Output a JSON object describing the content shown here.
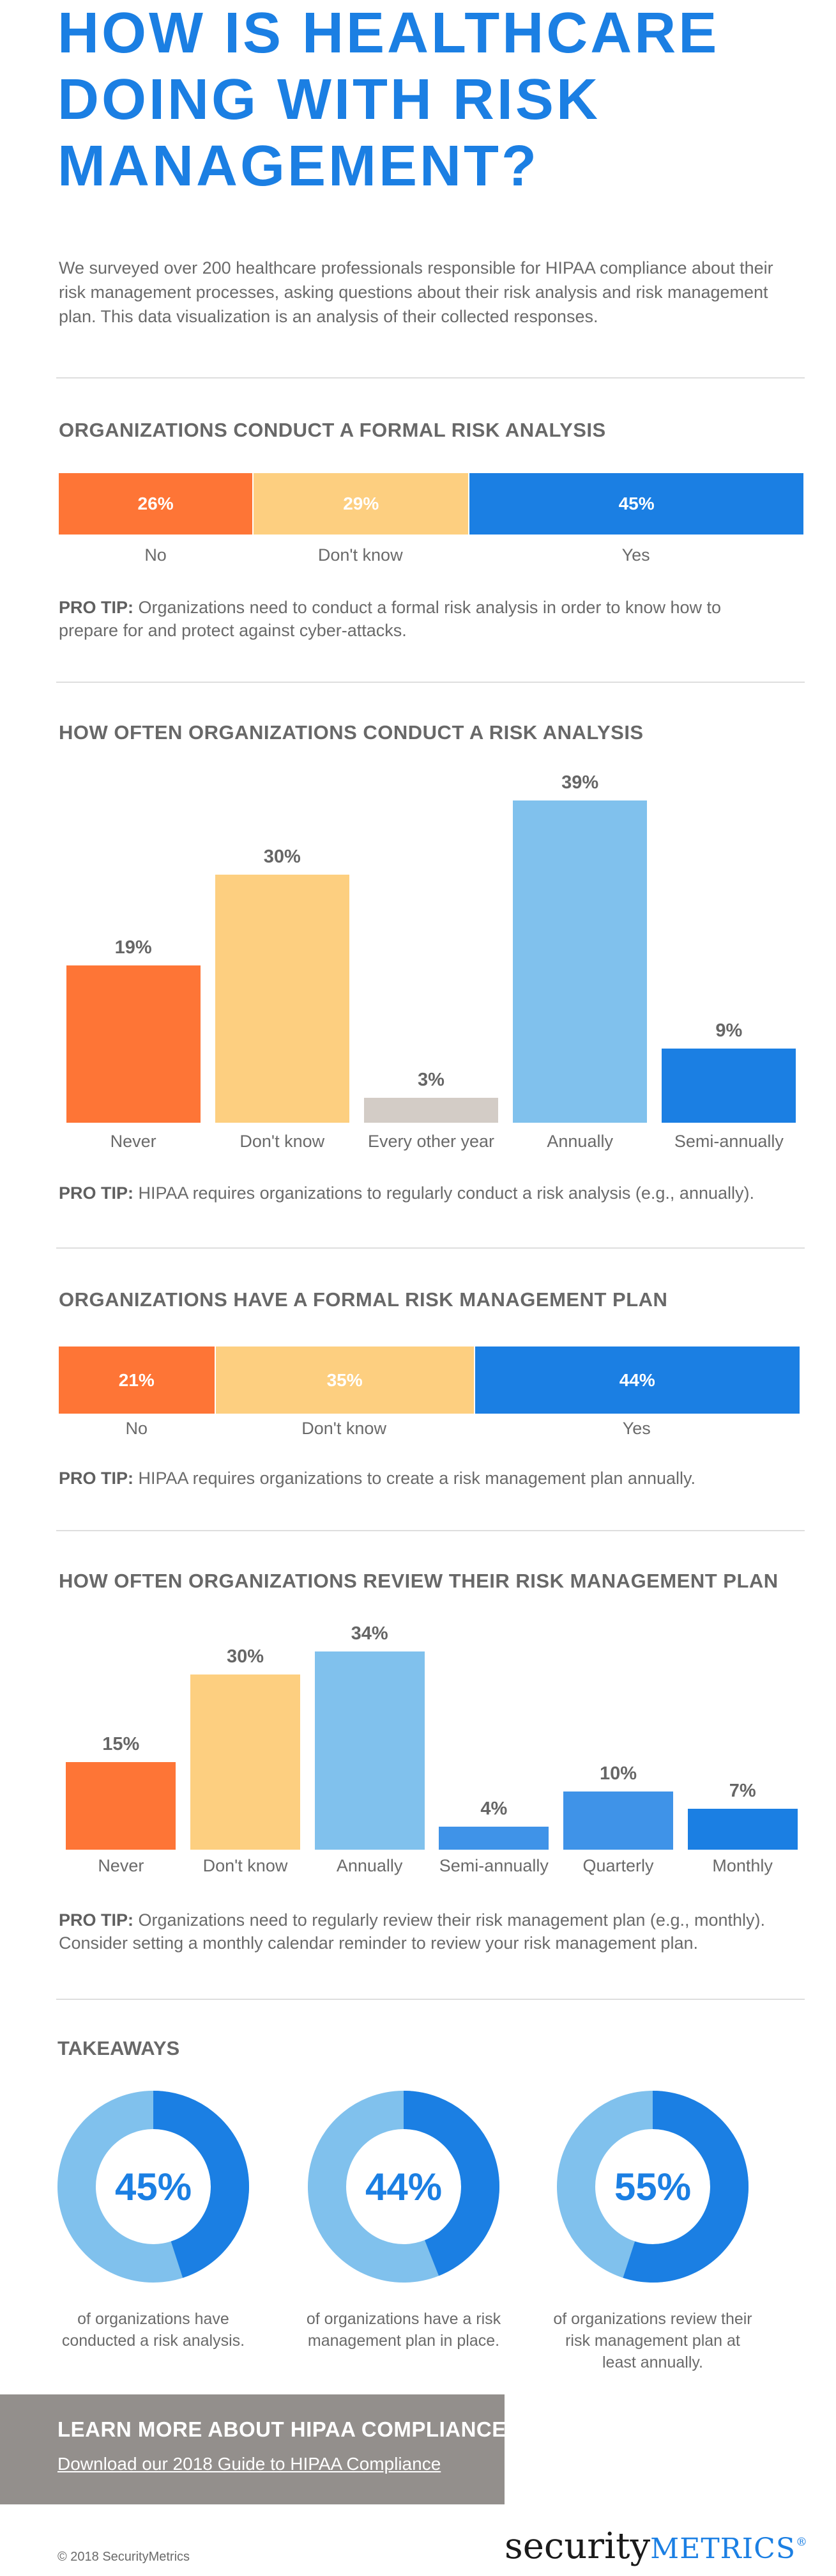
{
  "title": "HOW IS HEALTHCARE DOING WITH RISK MANAGEMENT?",
  "intro": "We surveyed over 200 healthcare professionals responsible for HIPAA compliance about their risk management processes, asking questions about their risk analysis and risk management plan. This data visualization is an analysis of their collected responses.",
  "pro_tip_label": "PRO TIP:",
  "colors": {
    "orange": "#fe7536",
    "yellow": "#fdcf80",
    "blue": "#1b7fe3",
    "light_blue": "#80c1ed",
    "mid_blue": "#3f93e8",
    "gray": "#d3ccc6"
  },
  "sections": [
    {
      "heading": "ORGANIZATIONS CONDUCT A FORMAL RISK ANALYSIS",
      "pro_tip": "Organizations need to conduct a formal risk analysis in order to know how to prepare for and protect against cyber-attacks."
    },
    {
      "heading": "HOW OFTEN ORGANIZATIONS CONDUCT A RISK ANALYSIS",
      "pro_tip": "HIPAA requires organizations to regularly conduct a risk analysis (e.g., annually)."
    },
    {
      "heading": "ORGANIZATIONS HAVE A FORMAL RISK MANAGEMENT PLAN",
      "pro_tip": "HIPAA requires organizations to create a risk management plan annually."
    },
    {
      "heading": "HOW OFTEN ORGANIZATIONS REVIEW THEIR RISK MANAGEMENT PLAN",
      "pro_tip": "Organizations need to regularly review their risk management plan (e.g., monthly). Consider setting a monthly calendar reminder to review your risk management plan."
    }
  ],
  "chart_data": [
    {
      "type": "bar",
      "orientation": "horizontal-stacked",
      "title": "ORGANIZATIONS CONDUCT A FORMAL RISK ANALYSIS",
      "categories": [
        "No",
        "Don't know",
        "Yes"
      ],
      "values": [
        26,
        29,
        45
      ],
      "labels": [
        "26%",
        "29%",
        "45%"
      ],
      "colors": [
        "#fe7536",
        "#fdcf80",
        "#1b7fe3"
      ]
    },
    {
      "type": "bar",
      "title": "HOW OFTEN ORGANIZATIONS CONDUCT A RISK ANALYSIS",
      "categories": [
        "Never",
        "Don't know",
        "Every other year",
        "Annually",
        "Semi-annually"
      ],
      "values": [
        19,
        30,
        3,
        39,
        9
      ],
      "labels": [
        "19%",
        "30%",
        "3%",
        "39%",
        "9%"
      ],
      "colors": [
        "#fe7536",
        "#fdcf80",
        "#d3ccc6",
        "#80c1ed",
        "#1b7fe3"
      ],
      "ylim": [
        0,
        39
      ]
    },
    {
      "type": "bar",
      "orientation": "horizontal-stacked",
      "title": "ORGANIZATIONS HAVE A FORMAL RISK MANAGEMENT PLAN",
      "categories": [
        "No",
        "Don't know",
        "Yes"
      ],
      "values": [
        21,
        35,
        44
      ],
      "labels": [
        "21%",
        "35%",
        "44%"
      ],
      "colors": [
        "#fe7536",
        "#fdcf80",
        "#1b7fe3"
      ]
    },
    {
      "type": "bar",
      "title": "HOW OFTEN ORGANIZATIONS REVIEW THEIR RISK MANAGEMENT PLAN",
      "categories": [
        "Never",
        "Don't know",
        "Annually",
        "Semi-annually",
        "Quarterly",
        "Monthly"
      ],
      "values": [
        15,
        30,
        34,
        4,
        10,
        7
      ],
      "labels": [
        "15%",
        "30%",
        "34%",
        "4%",
        "10%",
        "7%"
      ],
      "colors": [
        "#fe7536",
        "#fdcf80",
        "#80c1ed",
        "#3f93e8",
        "#3f93e8",
        "#1b7fe3"
      ],
      "ylim": [
        0,
        34
      ]
    },
    {
      "type": "pie",
      "title": "TAKEAWAYS",
      "donuts": [
        {
          "value": 45,
          "label": "45%",
          "caption": "of organizations have conducted a risk analysis."
        },
        {
          "value": 44,
          "label": "44%",
          "caption": "of organizations have a risk management plan in place."
        },
        {
          "value": 55,
          "label": "55%",
          "caption": "of organizations review their risk management plan at least annually."
        }
      ]
    }
  ],
  "cta": {
    "title": "LEARN MORE ABOUT HIPAA COMPLIANCE",
    "link": "Download our 2018 Guide to HIPAA Compliance"
  },
  "footer": {
    "copyright": "© 2018 SecurityMetrics",
    "logo_security": "security",
    "logo_metrics": "METRICS",
    "logo_mark": "®"
  }
}
